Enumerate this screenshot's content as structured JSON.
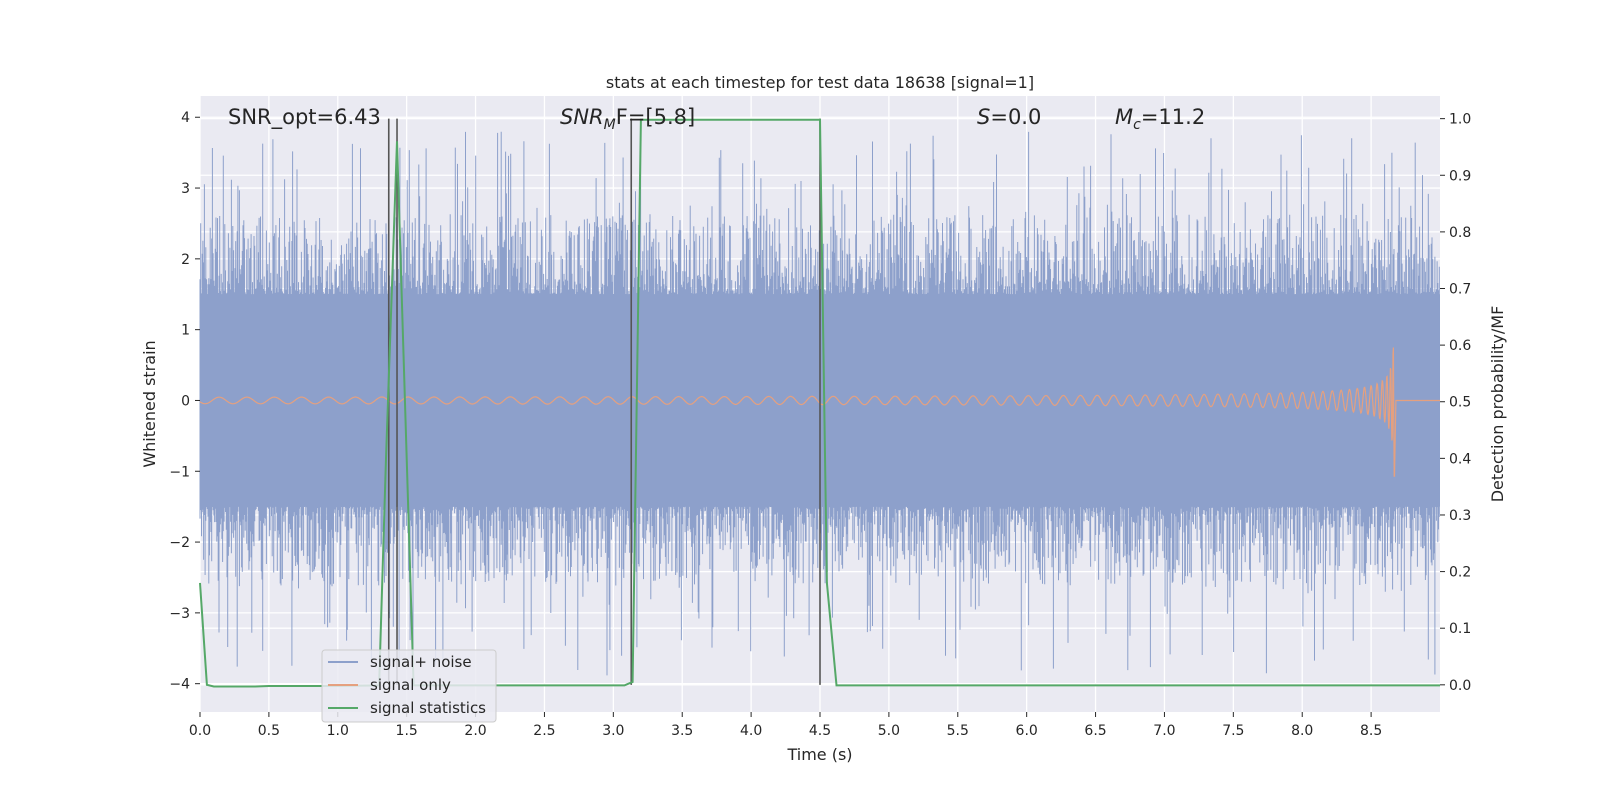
{
  "chart_data": {
    "type": "line",
    "title": "stats at each timestep for test data 18638 [signal=1]",
    "xlabel": "Time (s)",
    "ylabel_left": "Whitened strain",
    "ylabel_right": "Detection probability/MF",
    "xlim": [
      0.0,
      9.0
    ],
    "ylim_left": [
      -4.4,
      4.3
    ],
    "ylim_right": [
      -0.048,
      1.04
    ],
    "x_ticks": [
      0.0,
      0.5,
      1.0,
      1.5,
      2.0,
      2.5,
      3.0,
      3.5,
      4.0,
      4.5,
      5.0,
      5.5,
      6.0,
      6.5,
      7.0,
      7.5,
      8.0,
      8.5
    ],
    "x_tick_labels": [
      "0.0",
      "0.5",
      "1.0",
      "1.5",
      "2.0",
      "2.5",
      "3.0",
      "3.5",
      "4.0",
      "4.5",
      "5.0",
      "5.5",
      "6.0",
      "6.5",
      "7.0",
      "7.5",
      "8.0",
      "8.5"
    ],
    "y_left_ticks": [
      -4,
      -3,
      -2,
      -1,
      0,
      1,
      2,
      3,
      4
    ],
    "y_left_tick_labels": [
      "−4",
      "−3",
      "−2",
      "−1",
      "0",
      "1",
      "2",
      "3",
      "4"
    ],
    "y_right_ticks": [
      0.0,
      0.1,
      0.2,
      0.3,
      0.4,
      0.5,
      0.6,
      0.7,
      0.8,
      0.9,
      1.0
    ],
    "y_right_tick_labels": [
      "0.0",
      "0.1",
      "0.2",
      "0.3",
      "0.4",
      "0.5",
      "0.6",
      "0.7",
      "0.8",
      "0.9",
      "1.0"
    ],
    "grid": true,
    "annotations": {
      "snr_opt": {
        "label": "SNR_opt=6.43",
        "x": 0.2
      },
      "snr_mf": {
        "base": "SNR",
        "sub": "M",
        "tail": "F=[5.8]",
        "x": 2.6
      },
      "s": {
        "italic": "S",
        "tail": "=0.0",
        "x": 5.6
      },
      "mc": {
        "base": "M",
        "sub": "c",
        "tail": "=11.2",
        "x": 6.6
      }
    },
    "vertical_markers": [
      1.37,
      1.43,
      3.13,
      4.5
    ],
    "series": [
      {
        "name": "signal+ noise",
        "axis": "left",
        "color": "#8da0cb",
        "style": "noise",
        "x_range": [
          0.0,
          9.0
        ],
        "core_amplitude": 1.5,
        "peak_range": [
          2.0,
          3.8
        ]
      },
      {
        "name": "signal only",
        "axis": "left",
        "color": "#e5a07f",
        "style": "chirp",
        "x_range": [
          0.0,
          8.67
        ],
        "amplitude_start": 0.02,
        "amplitude_end": 1.25,
        "merger_time": 8.67
      },
      {
        "name": "signal statistics",
        "axis": "right",
        "color": "#55a868",
        "x": [
          0.0,
          0.05,
          0.1,
          0.4,
          0.5,
          1.0,
          1.3,
          1.35,
          1.43,
          1.5,
          1.55,
          2.0,
          3.0,
          3.08,
          3.12,
          3.14,
          3.2,
          4.5,
          4.55,
          4.62,
          5.0,
          9.0
        ],
        "y": [
          0.18,
          0.0,
          -0.003,
          -0.003,
          -0.002,
          -0.002,
          -0.001,
          0.4,
          0.96,
          0.4,
          -0.001,
          -0.001,
          -0.001,
          -0.001,
          0.003,
          0.005,
          0.998,
          0.998,
          0.18,
          -0.001,
          -0.001,
          -0.001
        ]
      }
    ],
    "legend": {
      "placement": "lower-left",
      "entries": [
        "signal+ noise",
        "signal only",
        "signal statistics"
      ]
    },
    "colors": {
      "background": "#eaeaf2",
      "grid": "#ffffff",
      "marker": "#555555"
    }
  }
}
